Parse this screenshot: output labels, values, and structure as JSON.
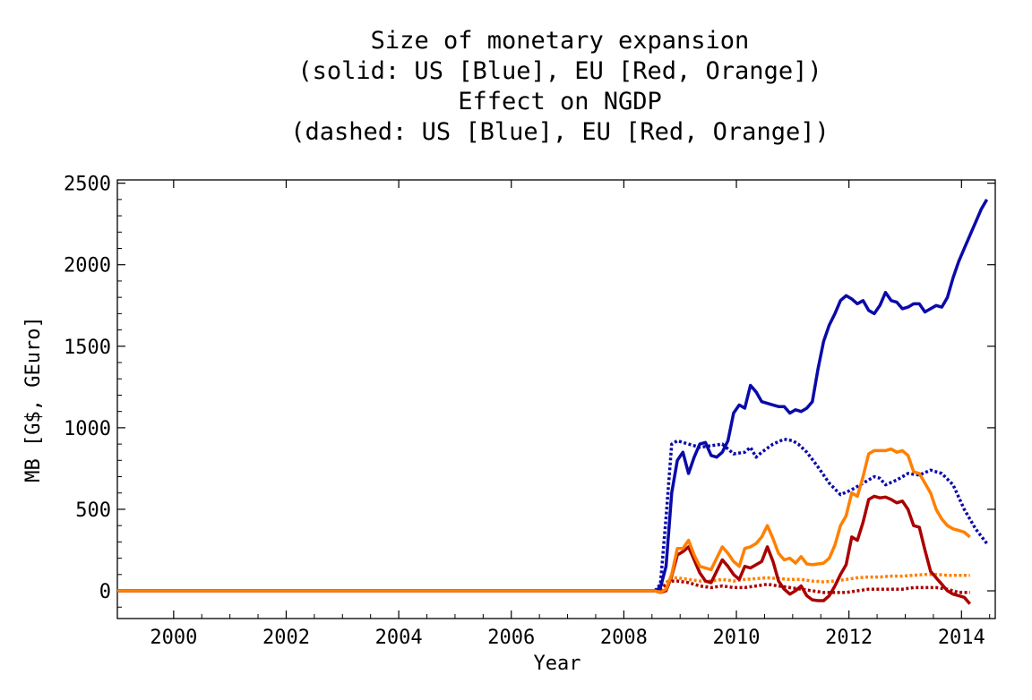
{
  "chart_data": {
    "type": "line",
    "title_lines": [
      "Size of monetary expansion",
      "(solid: US [Blue], EU [Red, Orange])",
      "Effect on NGDP",
      "(dashed: US [Blue], EU [Red, Orange])"
    ],
    "xlabel": "Year",
    "ylabel": "MB [G$, GEuro]",
    "xlim": [
      1999,
      2014
    ],
    "ylim": [
      -170,
      2520
    ],
    "xticks": [
      2000,
      2002,
      2004,
      2006,
      2008,
      2010,
      2012,
      2014
    ],
    "yticks": [
      0,
      500,
      1000,
      1500,
      2000,
      2500
    ],
    "grid": false,
    "series": [
      {
        "color": "#0a0aaa",
        "style": "solid",
        "points": [
          [
            1999.0,
            0
          ],
          [
            2000.0,
            0
          ],
          [
            2001.0,
            0
          ],
          [
            2002.0,
            0
          ],
          [
            2003.0,
            0
          ],
          [
            2004.0,
            0
          ],
          [
            2005.0,
            0
          ],
          [
            2006.0,
            0
          ],
          [
            2007.0,
            0
          ],
          [
            2008.0,
            0
          ],
          [
            2008.55,
            0
          ],
          [
            2008.65,
            20
          ],
          [
            2008.75,
            150
          ],
          [
            2008.85,
            600
          ],
          [
            2008.95,
            800
          ],
          [
            2009.05,
            850
          ],
          [
            2009.15,
            720
          ],
          [
            2009.25,
            820
          ],
          [
            2009.35,
            900
          ],
          [
            2009.45,
            910
          ],
          [
            2009.55,
            830
          ],
          [
            2009.65,
            820
          ],
          [
            2009.75,
            850
          ],
          [
            2009.85,
            920
          ],
          [
            2009.95,
            1090
          ],
          [
            2010.05,
            1140
          ],
          [
            2010.15,
            1120
          ],
          [
            2010.25,
            1260
          ],
          [
            2010.35,
            1220
          ],
          [
            2010.45,
            1160
          ],
          [
            2010.55,
            1150
          ],
          [
            2010.65,
            1140
          ],
          [
            2010.75,
            1130
          ],
          [
            2010.85,
            1130
          ],
          [
            2010.95,
            1090
          ],
          [
            2011.05,
            1110
          ],
          [
            2011.15,
            1100
          ],
          [
            2011.25,
            1120
          ],
          [
            2011.35,
            1160
          ],
          [
            2011.45,
            1360
          ],
          [
            2011.55,
            1530
          ],
          [
            2011.65,
            1630
          ],
          [
            2011.75,
            1700
          ],
          [
            2011.85,
            1780
          ],
          [
            2011.95,
            1810
          ],
          [
            2012.05,
            1790
          ],
          [
            2012.15,
            1760
          ],
          [
            2012.25,
            1780
          ],
          [
            2012.35,
            1720
          ],
          [
            2012.45,
            1700
          ],
          [
            2012.55,
            1750
          ],
          [
            2012.65,
            1830
          ],
          [
            2012.75,
            1780
          ],
          [
            2012.85,
            1770
          ],
          [
            2012.95,
            1730
          ],
          [
            2013.05,
            1740
          ],
          [
            2013.15,
            1760
          ],
          [
            2013.25,
            1760
          ],
          [
            2013.35,
            1710
          ],
          [
            2013.45,
            1730
          ],
          [
            2013.55,
            1750
          ],
          [
            2013.65,
            1740
          ],
          [
            2013.75,
            1800
          ],
          [
            2013.85,
            1920
          ],
          [
            2013.95,
            2020
          ],
          [
            2014.05,
            2100
          ],
          [
            2014.15,
            2180
          ],
          [
            2014.25,
            2260
          ],
          [
            2014.35,
            2340
          ],
          [
            2014.45,
            2400
          ]
        ]
      },
      {
        "color": "#0a0aaa",
        "style": "dashed",
        "points": [
          [
            2008.55,
            0
          ],
          [
            2008.65,
            40
          ],
          [
            2008.75,
            450
          ],
          [
            2008.85,
            900
          ],
          [
            2008.95,
            920
          ],
          [
            2009.15,
            900
          ],
          [
            2009.35,
            880
          ],
          [
            2009.55,
            890
          ],
          [
            2009.75,
            900
          ],
          [
            2009.95,
            840
          ],
          [
            2010.15,
            850
          ],
          [
            2010.25,
            880
          ],
          [
            2010.35,
            820
          ],
          [
            2010.45,
            850
          ],
          [
            2010.65,
            900
          ],
          [
            2010.85,
            930
          ],
          [
            2011.0,
            920
          ],
          [
            2011.1,
            900
          ],
          [
            2011.25,
            850
          ],
          [
            2011.45,
            760
          ],
          [
            2011.65,
            660
          ],
          [
            2011.85,
            590
          ],
          [
            2012.05,
            620
          ],
          [
            2012.25,
            660
          ],
          [
            2012.45,
            700
          ],
          [
            2012.55,
            690
          ],
          [
            2012.65,
            650
          ],
          [
            2012.85,
            680
          ],
          [
            2013.05,
            720
          ],
          [
            2013.25,
            710
          ],
          [
            2013.45,
            740
          ],
          [
            2013.65,
            720
          ],
          [
            2013.85,
            650
          ],
          [
            2014.05,
            500
          ],
          [
            2014.25,
            380
          ],
          [
            2014.45,
            290
          ]
        ]
      },
      {
        "color": "#ff8000",
        "style": "solid",
        "points": [
          [
            1999.0,
            0
          ],
          [
            2000.0,
            0
          ],
          [
            2001.0,
            0
          ],
          [
            2002.0,
            0
          ],
          [
            2003.0,
            0
          ],
          [
            2004.0,
            0
          ],
          [
            2005.0,
            0
          ],
          [
            2006.0,
            0
          ],
          [
            2007.0,
            0
          ],
          [
            2008.0,
            0
          ],
          [
            2008.55,
            0
          ],
          [
            2008.65,
            -10
          ],
          [
            2008.75,
            10
          ],
          [
            2008.85,
            100
          ],
          [
            2008.95,
            260
          ],
          [
            2009.05,
            260
          ],
          [
            2009.15,
            310
          ],
          [
            2009.25,
            220
          ],
          [
            2009.35,
            150
          ],
          [
            2009.45,
            140
          ],
          [
            2009.55,
            130
          ],
          [
            2009.65,
            200
          ],
          [
            2009.75,
            270
          ],
          [
            2009.85,
            230
          ],
          [
            2009.95,
            180
          ],
          [
            2010.05,
            150
          ],
          [
            2010.15,
            260
          ],
          [
            2010.25,
            270
          ],
          [
            2010.35,
            290
          ],
          [
            2010.45,
            330
          ],
          [
            2010.55,
            400
          ],
          [
            2010.65,
            320
          ],
          [
            2010.75,
            230
          ],
          [
            2010.85,
            190
          ],
          [
            2010.95,
            200
          ],
          [
            2011.05,
            170
          ],
          [
            2011.15,
            210
          ],
          [
            2011.25,
            165
          ],
          [
            2011.35,
            160
          ],
          [
            2011.45,
            165
          ],
          [
            2011.55,
            170
          ],
          [
            2011.65,
            200
          ],
          [
            2011.75,
            280
          ],
          [
            2011.85,
            400
          ],
          [
            2011.95,
            460
          ],
          [
            2012.05,
            600
          ],
          [
            2012.15,
            580
          ],
          [
            2012.25,
            700
          ],
          [
            2012.35,
            840
          ],
          [
            2012.45,
            860
          ],
          [
            2012.55,
            860
          ],
          [
            2012.65,
            860
          ],
          [
            2012.75,
            870
          ],
          [
            2012.85,
            850
          ],
          [
            2012.95,
            860
          ],
          [
            2013.05,
            830
          ],
          [
            2013.15,
            730
          ],
          [
            2013.25,
            720
          ],
          [
            2013.35,
            660
          ],
          [
            2013.45,
            600
          ],
          [
            2013.55,
            500
          ],
          [
            2013.65,
            440
          ],
          [
            2013.75,
            400
          ],
          [
            2013.85,
            380
          ],
          [
            2013.95,
            370
          ],
          [
            2014.05,
            360
          ],
          [
            2014.15,
            330
          ]
        ]
      },
      {
        "color": "#ff8000",
        "style": "dashed",
        "points": [
          [
            2008.55,
            0
          ],
          [
            2008.65,
            10
          ],
          [
            2008.75,
            50
          ],
          [
            2008.85,
            80
          ],
          [
            2008.95,
            80
          ],
          [
            2009.15,
            70
          ],
          [
            2009.35,
            60
          ],
          [
            2009.55,
            60
          ],
          [
            2009.75,
            70
          ],
          [
            2009.95,
            60
          ],
          [
            2010.15,
            70
          ],
          [
            2010.35,
            75
          ],
          [
            2010.55,
            80
          ],
          [
            2010.75,
            75
          ],
          [
            2010.95,
            70
          ],
          [
            2011.15,
            70
          ],
          [
            2011.35,
            60
          ],
          [
            2011.55,
            55
          ],
          [
            2011.75,
            60
          ],
          [
            2011.95,
            70
          ],
          [
            2012.15,
            80
          ],
          [
            2012.35,
            85
          ],
          [
            2012.55,
            85
          ],
          [
            2012.75,
            90
          ],
          [
            2012.95,
            90
          ],
          [
            2013.15,
            95
          ],
          [
            2013.35,
            100
          ],
          [
            2013.55,
            100
          ],
          [
            2013.75,
            95
          ],
          [
            2013.95,
            95
          ],
          [
            2014.15,
            95
          ]
        ]
      },
      {
        "color": "#aa0000",
        "style": "solid",
        "points": [
          [
            1999.0,
            0
          ],
          [
            2000.0,
            0
          ],
          [
            2001.0,
            0
          ],
          [
            2002.0,
            0
          ],
          [
            2003.0,
            0
          ],
          [
            2004.0,
            0
          ],
          [
            2005.0,
            0
          ],
          [
            2006.0,
            0
          ],
          [
            2007.0,
            0
          ],
          [
            2008.0,
            0
          ],
          [
            2008.55,
            0
          ],
          [
            2008.65,
            -10
          ],
          [
            2008.75,
            0
          ],
          [
            2008.85,
            90
          ],
          [
            2008.95,
            220
          ],
          [
            2009.05,
            240
          ],
          [
            2009.15,
            270
          ],
          [
            2009.25,
            190
          ],
          [
            2009.35,
            110
          ],
          [
            2009.45,
            60
          ],
          [
            2009.55,
            50
          ],
          [
            2009.65,
            120
          ],
          [
            2009.75,
            190
          ],
          [
            2009.85,
            150
          ],
          [
            2009.95,
            100
          ],
          [
            2010.05,
            70
          ],
          [
            2010.15,
            150
          ],
          [
            2010.25,
            140
          ],
          [
            2010.35,
            160
          ],
          [
            2010.45,
            180
          ],
          [
            2010.55,
            270
          ],
          [
            2010.65,
            180
          ],
          [
            2010.75,
            60
          ],
          [
            2010.85,
            10
          ],
          [
            2010.95,
            -20
          ],
          [
            2011.05,
            0
          ],
          [
            2011.15,
            30
          ],
          [
            2011.25,
            -30
          ],
          [
            2011.35,
            -55
          ],
          [
            2011.45,
            -60
          ],
          [
            2011.55,
            -60
          ],
          [
            2011.65,
            -30
          ],
          [
            2011.75,
            30
          ],
          [
            2011.85,
            100
          ],
          [
            2011.95,
            160
          ],
          [
            2012.05,
            330
          ],
          [
            2012.15,
            310
          ],
          [
            2012.25,
            420
          ],
          [
            2012.35,
            560
          ],
          [
            2012.45,
            580
          ],
          [
            2012.55,
            570
          ],
          [
            2012.65,
            575
          ],
          [
            2012.75,
            560
          ],
          [
            2012.85,
            540
          ],
          [
            2012.95,
            550
          ],
          [
            2013.05,
            500
          ],
          [
            2013.15,
            400
          ],
          [
            2013.25,
            390
          ],
          [
            2013.35,
            250
          ],
          [
            2013.45,
            120
          ],
          [
            2013.55,
            80
          ],
          [
            2013.65,
            40
          ],
          [
            2013.75,
            0
          ],
          [
            2013.85,
            -20
          ],
          [
            2013.95,
            -30
          ],
          [
            2014.05,
            -40
          ],
          [
            2014.15,
            -80
          ]
        ]
      },
      {
        "color": "#aa0000",
        "style": "dashed",
        "points": [
          [
            2008.55,
            0
          ],
          [
            2008.65,
            10
          ],
          [
            2008.75,
            40
          ],
          [
            2008.85,
            60
          ],
          [
            2008.95,
            60
          ],
          [
            2009.15,
            50
          ],
          [
            2009.35,
            30
          ],
          [
            2009.55,
            20
          ],
          [
            2009.75,
            30
          ],
          [
            2009.95,
            20
          ],
          [
            2010.15,
            20
          ],
          [
            2010.35,
            30
          ],
          [
            2010.55,
            40
          ],
          [
            2010.75,
            30
          ],
          [
            2010.95,
            20
          ],
          [
            2011.15,
            10
          ],
          [
            2011.35,
            0
          ],
          [
            2011.55,
            -10
          ],
          [
            2011.75,
            -10
          ],
          [
            2011.95,
            -10
          ],
          [
            2012.15,
            0
          ],
          [
            2012.35,
            10
          ],
          [
            2012.55,
            10
          ],
          [
            2012.75,
            10
          ],
          [
            2012.95,
            10
          ],
          [
            2013.15,
            20
          ],
          [
            2013.35,
            20
          ],
          [
            2013.55,
            20
          ],
          [
            2013.75,
            10
          ],
          [
            2013.95,
            -10
          ],
          [
            2014.15,
            -10
          ]
        ]
      }
    ]
  }
}
